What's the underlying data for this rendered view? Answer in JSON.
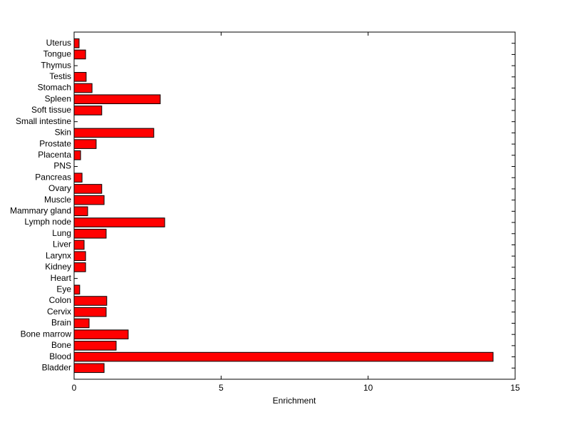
{
  "chart_data": {
    "type": "barh",
    "x_label": "Enrichment",
    "categories": [
      "Bladder",
      "Blood",
      "Bone",
      "Bone marrow",
      "Brain",
      "Cervix",
      "Colon",
      "Eye",
      "Heart",
      "Kidney",
      "Larynx",
      "Liver",
      "Lung",
      "Lymph node",
      "Mammary gland",
      "Muscle",
      "Ovary",
      "Pancreas",
      "PNS",
      "Placenta",
      "Prostate",
      "Skin",
      "Small intestine",
      "Soft tissue",
      "Spleen",
      "Stomach",
      "Testis",
      "Thymus",
      "Tongue",
      "Uterus"
    ],
    "values": [
      1.02,
      14.25,
      1.43,
      1.84,
      0.51,
      1.09,
      1.11,
      0.19,
      0,
      0.39,
      0.39,
      0.34,
      1.09,
      3.08,
      0.46,
      1.02,
      0.94,
      0.27,
      0,
      0.22,
      0.75,
      2.71,
      0,
      0.94,
      2.93,
      0.61,
      0.41,
      0,
      0.39,
      0.17
    ],
    "color": "#ff0000",
    "xlim": [
      0,
      15
    ],
    "xticks": [
      0,
      5,
      10,
      15
    ]
  }
}
